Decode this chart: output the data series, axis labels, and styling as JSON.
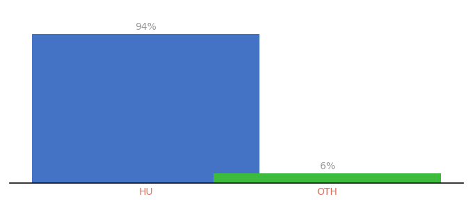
{
  "categories": [
    "HU",
    "OTH"
  ],
  "values": [
    94,
    6
  ],
  "bar_colors": [
    "#4472c4",
    "#3dbb3d"
  ],
  "label_texts": [
    "94%",
    "6%"
  ],
  "ylim": [
    0,
    105
  ],
  "background_color": "#ffffff",
  "label_color": "#999999",
  "tick_label_color": "#e07060",
  "bar_width": 0.5,
  "label_fontsize": 10,
  "tick_fontsize": 10,
  "spine_color": "#111111",
  "x_positions": [
    0.3,
    0.7
  ],
  "xlim": [
    0.0,
    1.0
  ]
}
